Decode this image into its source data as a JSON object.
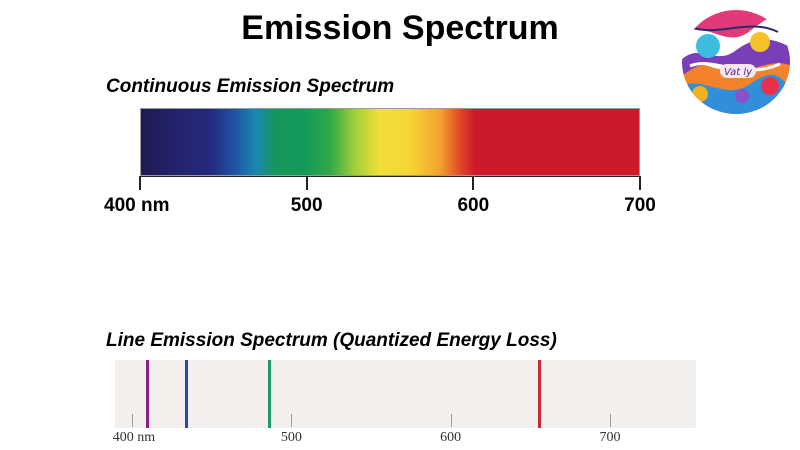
{
  "title": "Emission Spectrum",
  "continuous": {
    "label": "Continuous Emission Spectrum",
    "ticks": [
      {
        "label": "400 nm",
        "value": 400
      },
      {
        "label": "500",
        "value": 500
      },
      {
        "label": "600",
        "value": 600
      },
      {
        "label": "700",
        "value": 700
      }
    ]
  },
  "line_spectrum": {
    "label": "Line Emission Spectrum (Quantized Energy Loss)",
    "lines": [
      {
        "wavelength": 410,
        "color": "#8a1e86"
      },
      {
        "wavelength": 434,
        "color": "#2c4d93"
      },
      {
        "wavelength": 486,
        "color": "#1a9a6c"
      },
      {
        "wavelength": 656,
        "color": "#c9283c"
      }
    ],
    "ticks": [
      {
        "label": "400 nm",
        "value": 400
      },
      {
        "label": "500",
        "value": 500
      },
      {
        "label": "600",
        "value": 600
      },
      {
        "label": "700",
        "value": 700
      }
    ]
  },
  "logo": {
    "text": "Vat ly"
  }
}
